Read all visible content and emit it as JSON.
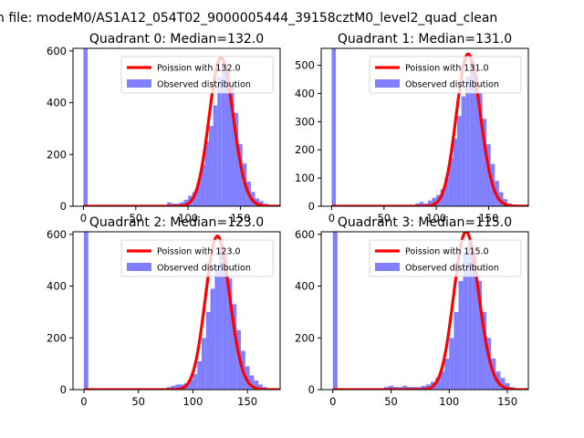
{
  "figure": {
    "suptitle": "n file: modeM0/AS1A12_054T02_9000005444_39158cztM0_level2_quad_clean"
  },
  "colors": {
    "hist": "#7f7fff",
    "poisson": "#ff0000",
    "axis": "#000000"
  },
  "chart_data": [
    {
      "type": "bar",
      "title": "Quadrant 0: Median=132.0",
      "median": 132,
      "bin_width": 4,
      "xlim": [
        -10,
        188
      ],
      "ylim": [
        0,
        610
      ],
      "xticks": [
        0,
        50,
        100,
        150
      ],
      "yticks": [
        0,
        200,
        400,
        600
      ],
      "legend_position": "upper-right",
      "legend": [
        "Poission with 132.0",
        "Observed distribution"
      ],
      "series": [
        {
          "name": "Poission with 132.0",
          "kind": "line",
          "mean": 132,
          "scale": 573
        },
        {
          "name": "Observed distribution",
          "kind": "hist",
          "bins": [
            [
              0,
              610
            ],
            [
              76,
              5
            ],
            [
              80,
              15
            ],
            [
              84,
              10
            ],
            [
              88,
              10
            ],
            [
              92,
              15
            ],
            [
              96,
              25
            ],
            [
              100,
              40
            ],
            [
              104,
              55
            ],
            [
              108,
              90
            ],
            [
              112,
              160
            ],
            [
              116,
              250
            ],
            [
              120,
              310
            ],
            [
              124,
              390
            ],
            [
              128,
              500
            ],
            [
              132,
              560
            ],
            [
              136,
              530
            ],
            [
              140,
              460
            ],
            [
              144,
              360
            ],
            [
              148,
              240
            ],
            [
              152,
              165
            ],
            [
              156,
              95
            ],
            [
              160,
              55
            ],
            [
              164,
              30
            ],
            [
              168,
              20
            ],
            [
              172,
              10
            ]
          ]
        }
      ]
    },
    {
      "type": "bar",
      "title": "Quadrant 1: Median=131.0",
      "median": 131,
      "bin_width": 4,
      "xlim": [
        -10,
        188
      ],
      "ylim": [
        0,
        560
      ],
      "xticks": [
        0,
        50,
        100,
        150
      ],
      "yticks": [
        0,
        100,
        200,
        300,
        400,
        500
      ],
      "legend_position": "upper-right",
      "legend": [
        "Poission with 131.0",
        "Observed distribution"
      ],
      "series": [
        {
          "name": "Poission with 131.0",
          "kind": "line",
          "mean": 131,
          "scale": 540
        },
        {
          "name": "Observed distribution",
          "kind": "hist",
          "bins": [
            [
              0,
              560
            ],
            [
              76,
              5
            ],
            [
              80,
              10
            ],
            [
              84,
              15
            ],
            [
              88,
              10
            ],
            [
              92,
              20
            ],
            [
              96,
              30
            ],
            [
              100,
              40
            ],
            [
              104,
              60
            ],
            [
              108,
              100
            ],
            [
              112,
              170
            ],
            [
              116,
              240
            ],
            [
              120,
              320
            ],
            [
              124,
              390
            ],
            [
              128,
              460
            ],
            [
              132,
              515
            ],
            [
              136,
              470
            ],
            [
              140,
              400
            ],
            [
              144,
              310
            ],
            [
              148,
              220
            ],
            [
              152,
              150
            ],
            [
              156,
              90
            ],
            [
              160,
              50
            ],
            [
              164,
              25
            ],
            [
              168,
              10
            ]
          ]
        }
      ]
    },
    {
      "type": "bar",
      "title": "Quadrant 2: Median=123.0",
      "median": 123,
      "bin_width": 4,
      "xlim": [
        -10,
        180
      ],
      "ylim": [
        0,
        610
      ],
      "xticks": [
        0,
        50,
        100,
        150
      ],
      "yticks": [
        0,
        200,
        400,
        600
      ],
      "legend_position": "upper-right",
      "legend": [
        "Poission with 123.0",
        "Observed distribution"
      ],
      "series": [
        {
          "name": "Poission with 123.0",
          "kind": "line",
          "mean": 123,
          "scale": 593
        },
        {
          "name": "Observed distribution",
          "kind": "hist",
          "bins": [
            [
              0,
              610
            ],
            [
              72,
              5
            ],
            [
              76,
              10
            ],
            [
              80,
              15
            ],
            [
              84,
              20
            ],
            [
              88,
              20
            ],
            [
              92,
              25
            ],
            [
              96,
              40
            ],
            [
              100,
              60
            ],
            [
              104,
              110
            ],
            [
              108,
              200
            ],
            [
              112,
              300
            ],
            [
              116,
              390
            ],
            [
              120,
              480
            ],
            [
              124,
              560
            ],
            [
              128,
              520
            ],
            [
              132,
              430
            ],
            [
              136,
              330
            ],
            [
              140,
              230
            ],
            [
              144,
              150
            ],
            [
              148,
              90
            ],
            [
              152,
              55
            ],
            [
              156,
              35
            ],
            [
              160,
              20
            ],
            [
              164,
              10
            ],
            [
              168,
              5
            ]
          ]
        }
      ]
    },
    {
      "type": "bar",
      "title": "Quadrant 3: Median=115.0",
      "median": 115,
      "bin_width": 4,
      "xlim": [
        -10,
        168
      ],
      "ylim": [
        0,
        610
      ],
      "xticks": [
        0,
        50,
        100,
        150
      ],
      "yticks": [
        0,
        200,
        400,
        600
      ],
      "legend_position": "upper-right",
      "legend": [
        "Poission with 115.0",
        "Observed distribution"
      ],
      "series": [
        {
          "name": "Poission with 115.0",
          "kind": "line",
          "mean": 115,
          "scale": 610
        },
        {
          "name": "Observed distribution",
          "kind": "hist",
          "bins": [
            [
              0,
              610
            ],
            [
              44,
              10
            ],
            [
              48,
              15
            ],
            [
              52,
              10
            ],
            [
              56,
              10
            ],
            [
              60,
              15
            ],
            [
              64,
              10
            ],
            [
              68,
              10
            ],
            [
              72,
              10
            ],
            [
              76,
              15
            ],
            [
              80,
              20
            ],
            [
              84,
              30
            ],
            [
              88,
              45
            ],
            [
              92,
              70
            ],
            [
              96,
              120
            ],
            [
              100,
              200
            ],
            [
              104,
              300
            ],
            [
              108,
              420
            ],
            [
              112,
              530
            ],
            [
              116,
              570
            ],
            [
              120,
              520
            ],
            [
              124,
              420
            ],
            [
              128,
              300
            ],
            [
              132,
              200
            ],
            [
              136,
              120
            ],
            [
              140,
              70
            ],
            [
              144,
              45
            ],
            [
              148,
              25
            ],
            [
              152,
              10
            ]
          ]
        }
      ]
    }
  ]
}
